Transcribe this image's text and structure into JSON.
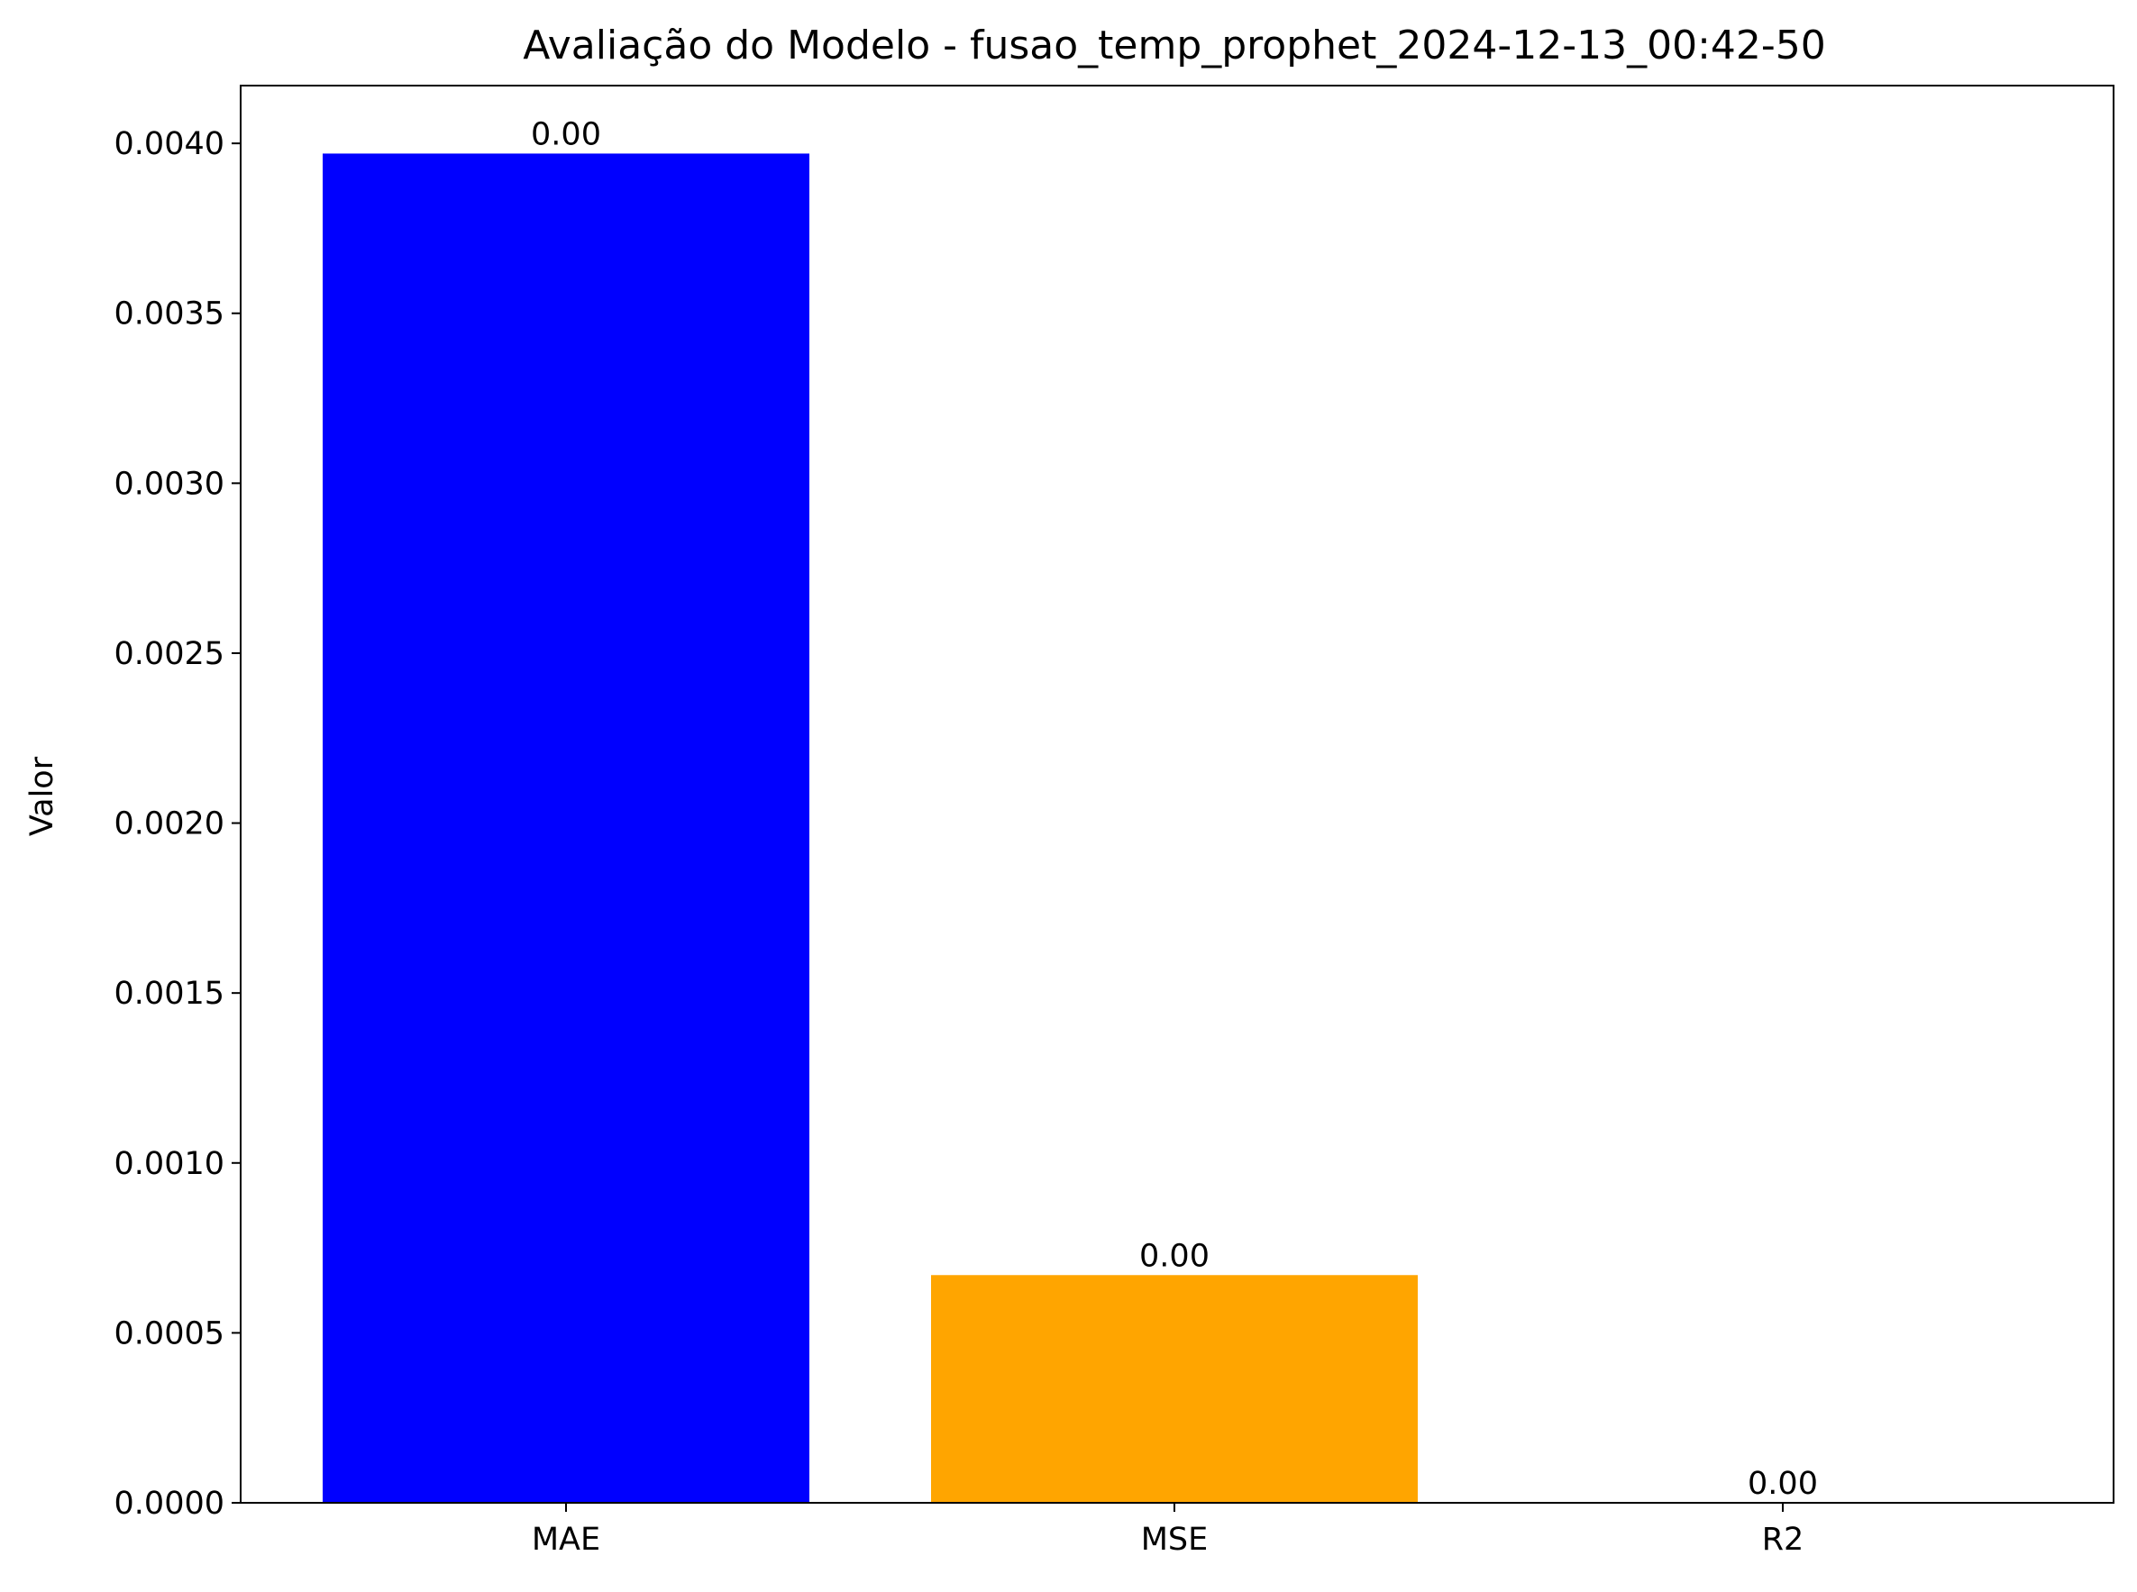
{
  "chart_data": {
    "type": "bar",
    "title": "Avaliação do Modelo - fusao_temp_prophet_2024-12-13_00:42-50",
    "xlabel": "",
    "ylabel": "Valor",
    "categories": [
      "MAE",
      "MSE",
      "R2"
    ],
    "values": [
      0.00397,
      0.00067,
      0.0
    ],
    "data_labels": [
      "0.00",
      "0.00",
      "0.00"
    ],
    "colors": [
      "#0000ff",
      "#ffa500",
      "#008000"
    ],
    "ylim": [
      0,
      0.00417
    ],
    "yticks": [
      0.0,
      0.0005,
      0.001,
      0.0015,
      0.002,
      0.0025,
      0.003,
      0.0035,
      0.004
    ],
    "ytick_labels": [
      "0.0000",
      "0.0005",
      "0.0010",
      "0.0015",
      "0.0020",
      "0.0025",
      "0.0030",
      "0.0035",
      "0.0040"
    ],
    "grid": false,
    "legend": "none"
  }
}
